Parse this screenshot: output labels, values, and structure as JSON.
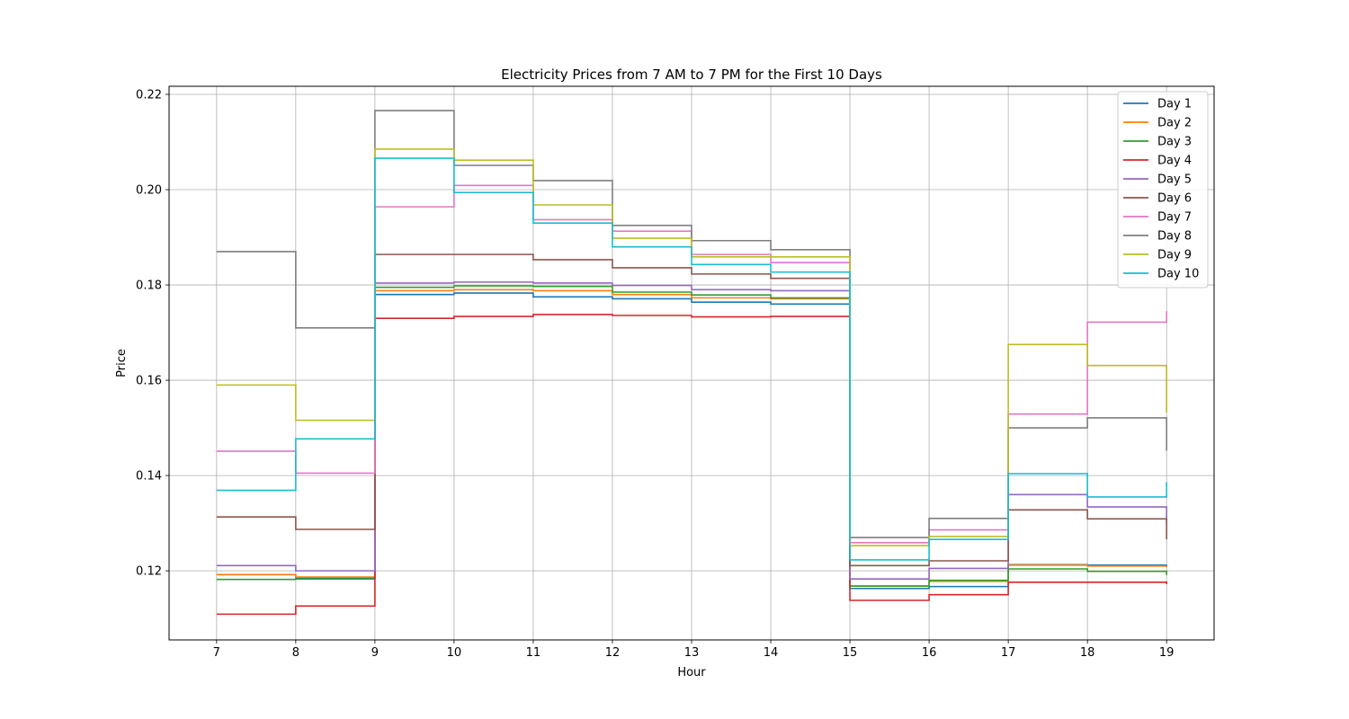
{
  "chart_data": {
    "type": "line",
    "title": "Electricity Prices from 7 AM to 7 PM for the First 10 Days",
    "xlabel": "Hour",
    "ylabel": "Price",
    "x": [
      7,
      8,
      9,
      10,
      11,
      12,
      13,
      14,
      15,
      16,
      17,
      18,
      19
    ],
    "xlim": [
      6.4,
      19.6
    ],
    "ylim": [
      0.1055,
      0.2217
    ],
    "yticks": [
      0.12,
      0.14,
      0.16,
      0.18,
      0.2,
      0.22
    ],
    "ytick_labels": [
      "0.12",
      "0.14",
      "0.16",
      "0.18",
      "0.20",
      "0.22"
    ],
    "grid": true,
    "legend_position": "top-right",
    "step": "post",
    "series": [
      {
        "name": "Day 1",
        "color": "#1f77b4",
        "values": [
          0.1192,
          0.1185,
          0.178,
          0.1783,
          0.1775,
          0.1771,
          0.1764,
          0.176,
          0.1163,
          0.1167,
          0.1213,
          0.1212,
          0.1208
        ]
      },
      {
        "name": "Day 2",
        "color": "#ff7f0e",
        "values": [
          0.1192,
          0.1187,
          0.1788,
          0.179,
          0.1788,
          0.178,
          0.1773,
          0.1771,
          0.1168,
          0.1178,
          0.1212,
          0.121,
          0.1209
        ]
      },
      {
        "name": "Day 3",
        "color": "#2ca02c",
        "values": [
          0.1182,
          0.1183,
          0.1795,
          0.1798,
          0.1797,
          0.1785,
          0.1779,
          0.1773,
          0.1168,
          0.118,
          0.1204,
          0.1199,
          0.1191
        ]
      },
      {
        "name": "Day 4",
        "color": "#d62728",
        "values": [
          0.1109,
          0.1126,
          0.173,
          0.1734,
          0.1738,
          0.1736,
          0.1733,
          0.1734,
          0.1138,
          0.115,
          0.1176,
          0.1176,
          0.1172
        ]
      },
      {
        "name": "Day 5",
        "color": "#9467bd",
        "values": [
          0.1211,
          0.12,
          0.1804,
          0.1806,
          0.1804,
          0.1799,
          0.179,
          0.1788,
          0.1183,
          0.1205,
          0.136,
          0.1334,
          0.13
        ]
      },
      {
        "name": "Day 6",
        "color": "#8c564b",
        "values": [
          0.1313,
          0.1287,
          0.1864,
          0.1864,
          0.1853,
          0.1836,
          0.1823,
          0.1814,
          0.1211,
          0.1221,
          0.1328,
          0.1309,
          0.1266
        ]
      },
      {
        "name": "Day 7",
        "color": "#e377c2",
        "values": [
          0.1451,
          0.1405,
          0.1964,
          0.2009,
          0.1937,
          0.1913,
          0.1864,
          0.1847,
          0.1259,
          0.1286,
          0.1529,
          0.1722,
          0.1745
        ]
      },
      {
        "name": "Day 8",
        "color": "#7f7f7f",
        "values": [
          0.187,
          0.171,
          0.2166,
          0.2051,
          0.2019,
          0.1925,
          0.1893,
          0.1874,
          0.127,
          0.131,
          0.15,
          0.1521,
          0.1452
        ]
      },
      {
        "name": "Day 9",
        "color": "#bcbd22",
        "values": [
          0.159,
          0.1516,
          0.2085,
          0.2062,
          0.1968,
          0.1898,
          0.1859,
          0.1859,
          0.1253,
          0.1272,
          0.1675,
          0.1631,
          0.1532
        ]
      },
      {
        "name": "Day 10",
        "color": "#17becf",
        "values": [
          0.1369,
          0.1477,
          0.2066,
          0.1994,
          0.193,
          0.188,
          0.1843,
          0.1827,
          0.1223,
          0.1266,
          0.1404,
          0.1355,
          0.1386
        ]
      }
    ]
  }
}
